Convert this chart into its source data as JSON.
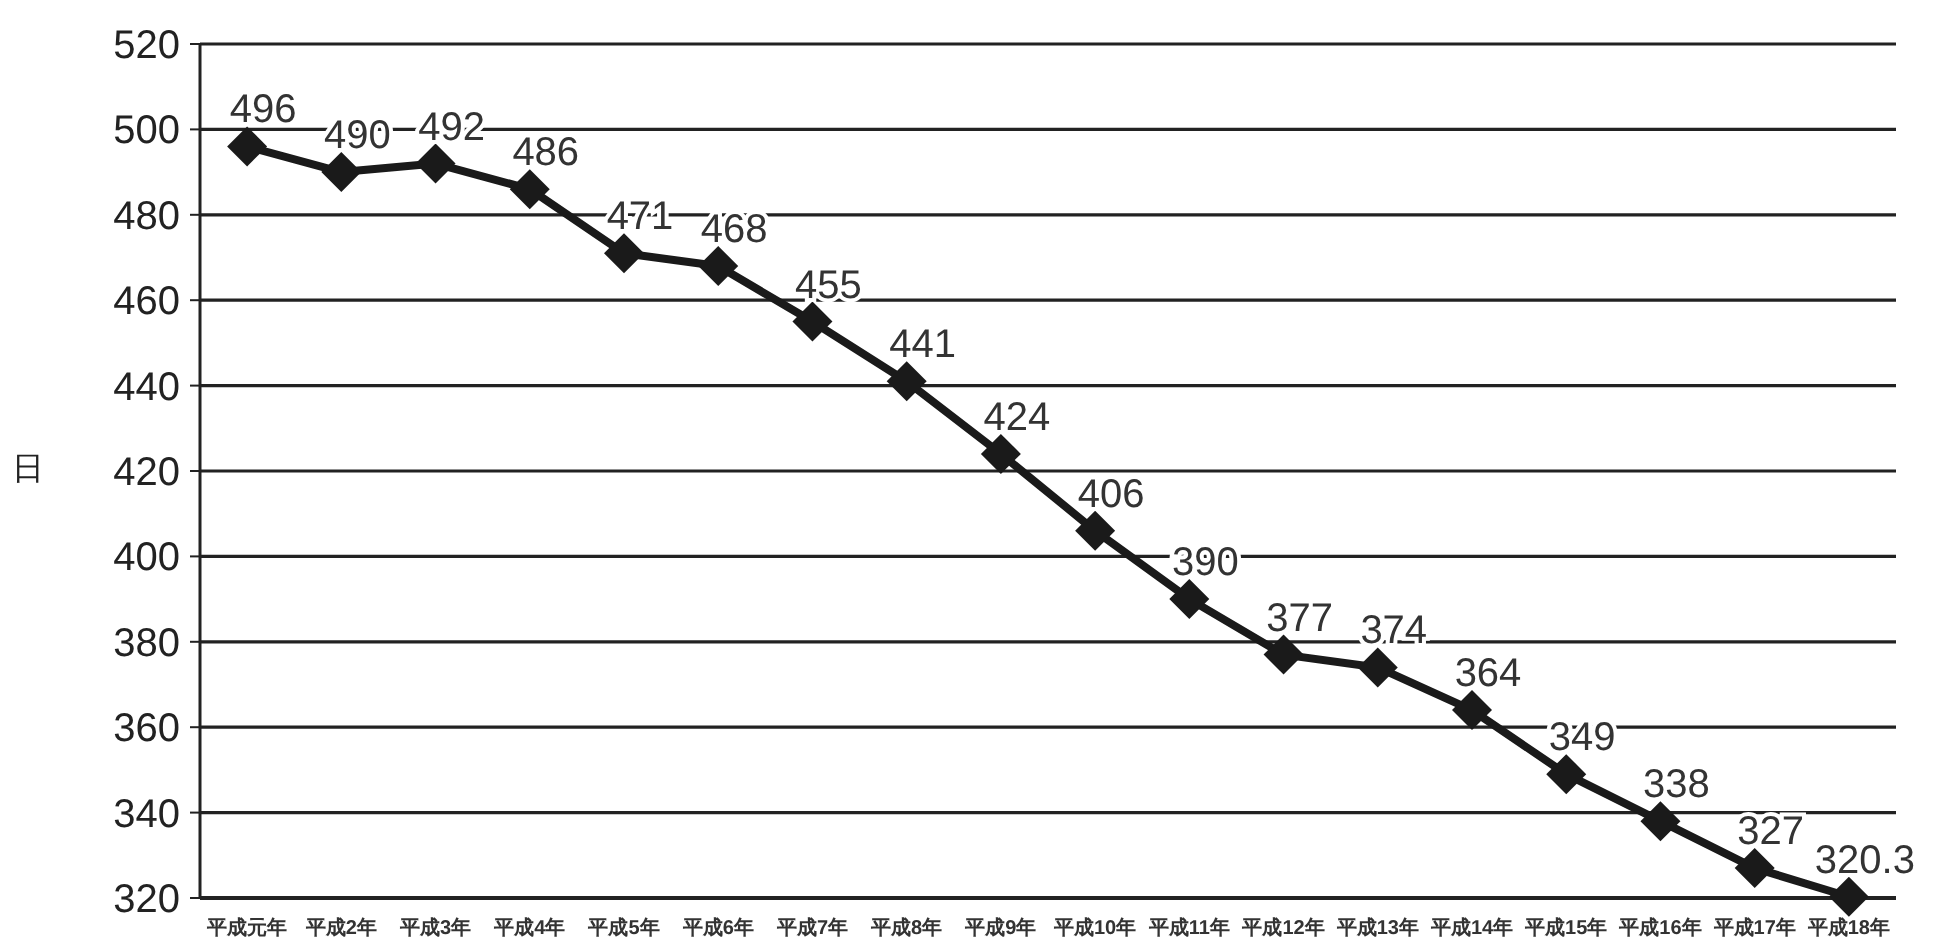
{
  "chart_data": {
    "type": "line",
    "ylabel": "日",
    "categories": [
      "平成元年",
      "平成2年",
      "平成3年",
      "平成4年",
      "平成5年",
      "平成6年",
      "平成7年",
      "平成8年",
      "平成9年",
      "平成10年",
      "平成11年",
      "平成12年",
      "平成13年",
      "平成14年",
      "平成15年",
      "平成16年",
      "平成17年",
      "平成18年"
    ],
    "series": [
      {
        "color": "#1a1a1a",
        "values": [
          496,
          490,
          492,
          486,
          471,
          468,
          455,
          441,
          424,
          406,
          390,
          377,
          374,
          364,
          349,
          338,
          327,
          320.3
        ]
      }
    ],
    "ylim": [
      320,
      520
    ],
    "yticks": [
      320,
      340,
      360,
      380,
      400,
      420,
      440,
      460,
      480,
      500,
      520
    ],
    "grid": "y",
    "marker": "diamond",
    "line_style": "solid",
    "data_labels": true
  }
}
